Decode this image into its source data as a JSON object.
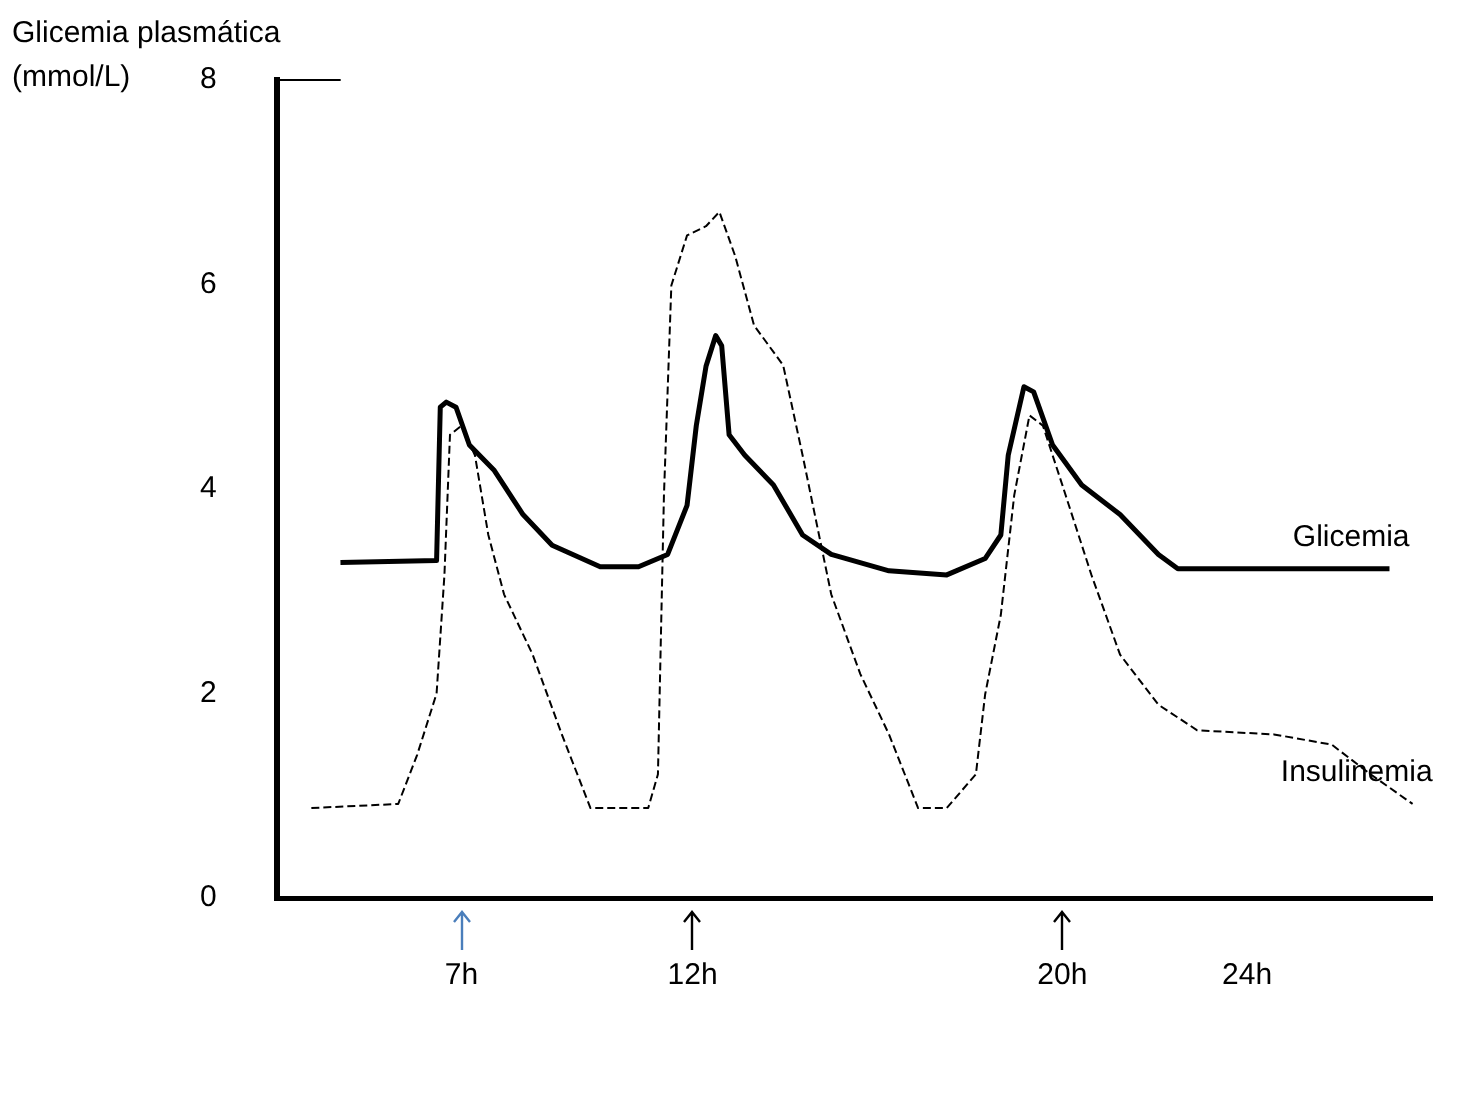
{
  "chart_data": {
    "type": "line",
    "ylabel": "Glicemia plasmática (mmol/L)",
    "xlim": [
      3,
      28
    ],
    "ylim": [
      0,
      8
    ],
    "xticks": [
      {
        "value": 7,
        "label": "7h"
      },
      {
        "value": 12,
        "label": "12h"
      },
      {
        "value": 20,
        "label": "20h"
      },
      {
        "value": 24,
        "label": "24h"
      }
    ],
    "yticks": [
      0,
      2,
      4,
      6,
      8
    ],
    "grid": false,
    "legend": false,
    "marker": "none",
    "series": [
      {
        "name": "Glicemia",
        "color": "#000000",
        "line_style": "solid",
        "x": [
          4.38,
          6.46,
          6.54,
          6.67,
          6.88,
          7.17,
          7.71,
          8.33,
          8.96,
          10.0,
          10.83,
          11.46,
          11.88,
          12.08,
          12.29,
          12.5,
          12.63,
          12.79,
          13.13,
          13.75,
          14.38,
          15.0,
          16.25,
          17.5,
          18.33,
          18.67,
          18.83,
          19.17,
          19.38,
          19.79,
          20.42,
          21.25,
          22.08,
          22.5,
          27.08
        ],
        "values": [
          3.28,
          3.3,
          4.8,
          4.85,
          4.8,
          4.43,
          4.18,
          3.75,
          3.45,
          3.24,
          3.24,
          3.36,
          3.84,
          4.62,
          5.2,
          5.5,
          5.4,
          4.53,
          4.33,
          4.04,
          3.55,
          3.36,
          3.2,
          3.16,
          3.32,
          3.55,
          4.33,
          5.0,
          4.95,
          4.43,
          4.04,
          3.75,
          3.36,
          3.22,
          3.22
        ]
      },
      {
        "name": "Insulinemia",
        "color": "#000000",
        "line_style": "dashed",
        "x": [
          3.75,
          5.63,
          6.04,
          6.46,
          6.63,
          6.75,
          7.0,
          7.29,
          7.58,
          7.92,
          8.54,
          9.17,
          9.79,
          11.04,
          11.25,
          11.38,
          11.54,
          11.88,
          12.29,
          12.58,
          12.92,
          13.33,
          13.96,
          14.38,
          15.0,
          15.63,
          16.25,
          16.88,
          17.5,
          18.13,
          18.33,
          18.67,
          18.96,
          19.29,
          19.58,
          20.0,
          20.63,
          21.25,
          22.08,
          22.92,
          24.58,
          25.83,
          26.67,
          27.58
        ],
        "values": [
          0.88,
          0.92,
          1.4,
          2.0,
          3.16,
          4.53,
          4.62,
          4.33,
          3.55,
          2.97,
          2.38,
          1.6,
          0.88,
          0.88,
          1.21,
          3.94,
          5.99,
          6.48,
          6.57,
          6.71,
          6.28,
          5.6,
          5.21,
          4.33,
          2.97,
          2.19,
          1.6,
          0.88,
          0.88,
          1.21,
          1.99,
          2.77,
          3.94,
          4.72,
          4.62,
          4.04,
          3.16,
          2.38,
          1.89,
          1.64,
          1.6,
          1.5,
          1.21,
          0.92
        ]
      }
    ]
  }
}
